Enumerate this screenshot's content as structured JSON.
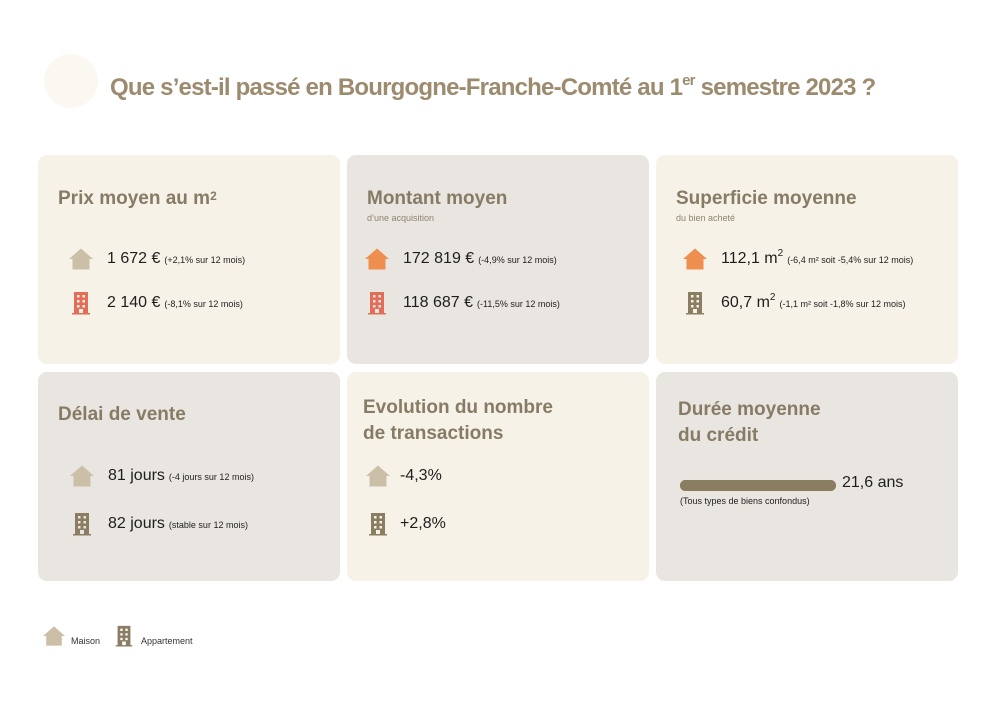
{
  "title": {
    "before": "Que s’est-il passé en Bourgogne-Franche-Comté au 1",
    "sup": "er",
    "after": " semestre 2023 ?"
  },
  "colors": {
    "house_beige": "#cbbfa8",
    "house_orange": "#ee8f4f",
    "apartment_red": "#e26e5a",
    "apartment_brown": "#8a7d61",
    "title": "#9c8b6e"
  },
  "cards": {
    "prix": {
      "title": "Prix moyen au m",
      "title_sup": "2",
      "rows": [
        {
          "icon": "house-icon",
          "value": "1 672 €",
          "note": "(+2,1% sur 12 mois)"
        },
        {
          "icon": "apartment-icon",
          "value": "2 140 €",
          "note": "(-8,1% sur 12 mois)"
        }
      ]
    },
    "montant": {
      "title": "Montant moyen",
      "subtitle": "d’une acquisition",
      "rows": [
        {
          "icon": "house-icon",
          "value": "172 819 €",
          "note": "(-4,9% sur 12 mois)"
        },
        {
          "icon": "apartment-icon",
          "value": "118 687 €",
          "note": "(-11,5% sur 12 mois)"
        }
      ]
    },
    "superficie": {
      "title": "Superficie moyenne",
      "subtitle": "du bien acheté",
      "rows": [
        {
          "icon": "house-icon",
          "value": "112,1 m",
          "value_sup": "2",
          "note": "(-6,4 m² soit -5,4% sur 12 mois)"
        },
        {
          "icon": "apartment-icon",
          "value": "60,7 m",
          "value_sup": "2",
          "note": "(-1,1 m²  soit -1,8% sur 12 mois)"
        }
      ]
    },
    "delai": {
      "title": "Délai de vente",
      "rows": [
        {
          "icon": "house-icon",
          "value": "81 jours",
          "note": "(-4 jours sur 12 mois)"
        },
        {
          "icon": "apartment-icon",
          "value": "82 jours",
          "note": "(stable sur 12 mois)"
        }
      ]
    },
    "evolution": {
      "title_line1": "Evolution du nombre",
      "title_line2": "de transactions",
      "rows": [
        {
          "icon": "house-icon",
          "value": "-4,3%"
        },
        {
          "icon": "apartment-icon",
          "value": "+2,8%"
        }
      ]
    },
    "duree": {
      "title_line1": "Durée moyenne",
      "title_line2": "du crédit",
      "value": "21,6 ans",
      "note": "(Tous types de biens confondus)",
      "bar_fill_fraction": 1.0
    }
  },
  "legend": {
    "house_label": "Maison",
    "apartment_label": "Appartement"
  }
}
